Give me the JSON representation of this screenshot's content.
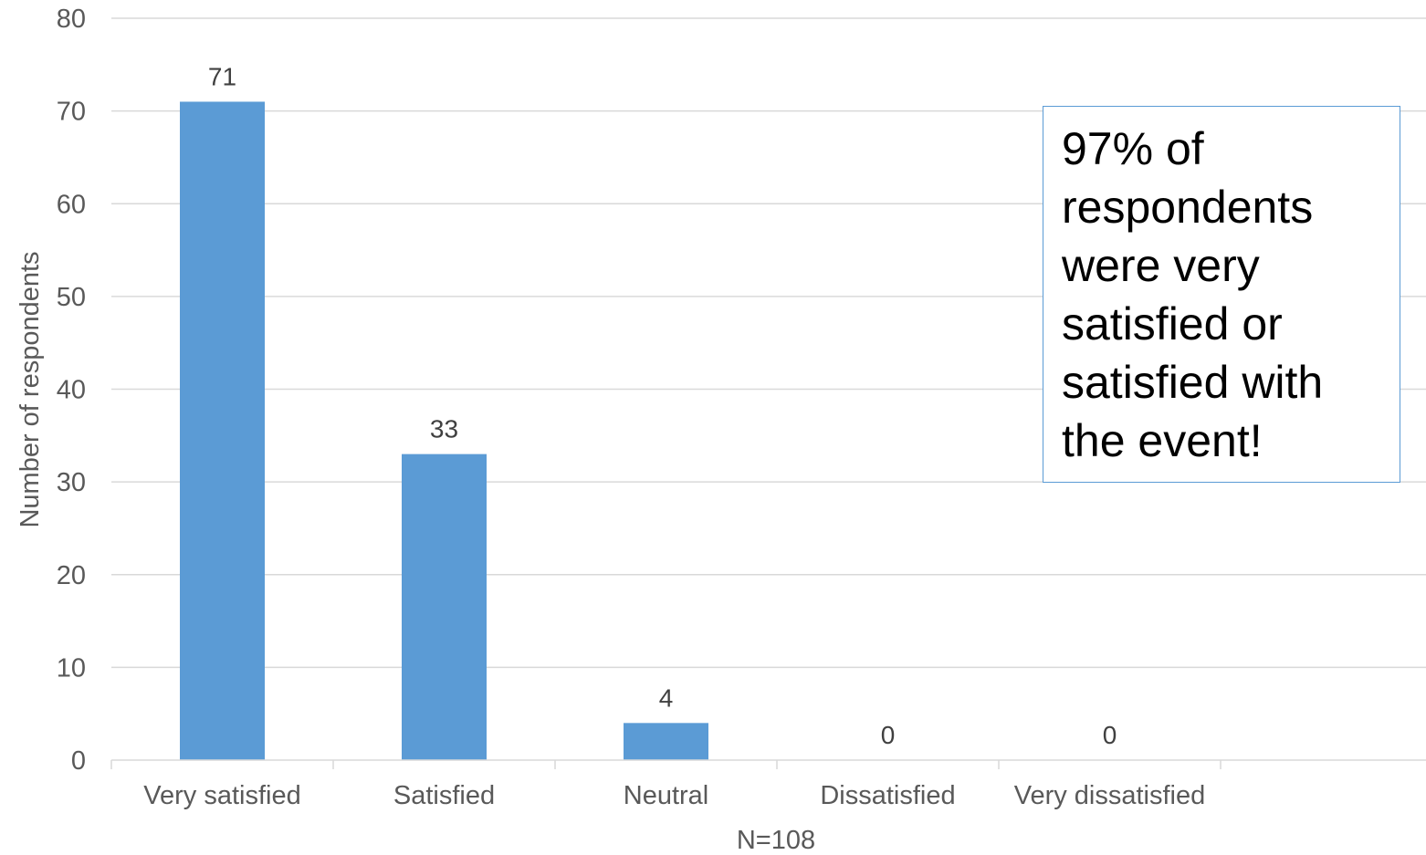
{
  "chart_data": {
    "type": "bar",
    "categories": [
      "Very satisfied",
      "Satisfied",
      "Neutral",
      "Dissatisfied",
      "Very dissatisfied"
    ],
    "values": [
      71,
      33,
      4,
      0,
      0
    ],
    "ylabel": "Number of respondents",
    "xlabel": "N=108",
    "ylim": [
      0,
      80
    ],
    "yticks": [
      0,
      10,
      20,
      30,
      40,
      50,
      60,
      70,
      80
    ],
    "grid": true,
    "bar_color": "#5b9bd5",
    "data_labels": true
  },
  "annotation": {
    "text": "97% of respondents were very satisfied or satisfied with the event!"
  }
}
